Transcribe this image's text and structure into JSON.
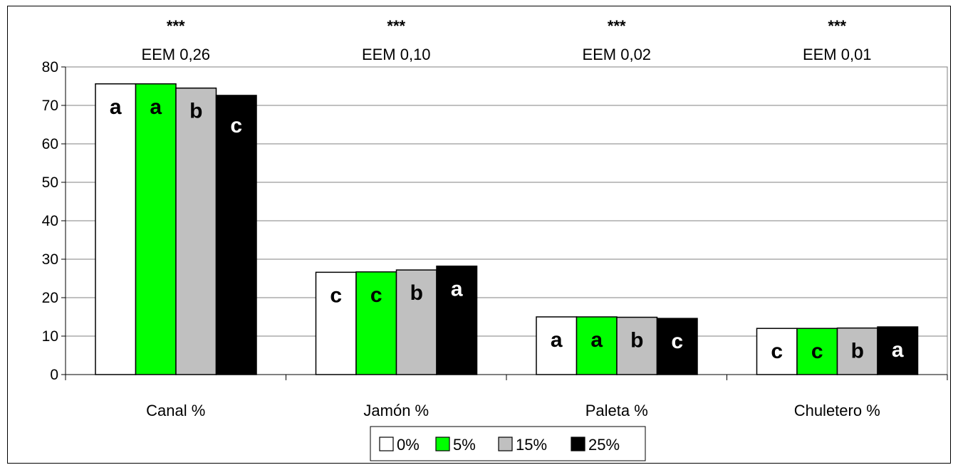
{
  "chart_data": {
    "type": "bar",
    "categories": [
      "Canal %",
      "Jamón %",
      "Paleta %",
      "Chuletero %"
    ],
    "series": [
      {
        "name": "0%",
        "color": "#ffffff",
        "values": [
          75.6,
          26.6,
          15.0,
          12.0
        ],
        "letters": [
          "a",
          "c",
          "a",
          "c"
        ]
      },
      {
        "name": "5%",
        "color": "#00ff00",
        "values": [
          75.6,
          26.7,
          15.0,
          12.0
        ],
        "letters": [
          "a",
          "c",
          "a",
          "c"
        ]
      },
      {
        "name": "15%",
        "color": "#c0c0c0",
        "values": [
          74.5,
          27.2,
          14.9,
          12.1
        ],
        "letters": [
          "b",
          "b",
          "b",
          "b"
        ]
      },
      {
        "name": "25%",
        "color": "#000000",
        "values": [
          72.6,
          28.2,
          14.6,
          12.4
        ],
        "letters": [
          "c",
          "a",
          "c",
          "a"
        ]
      }
    ],
    "annotations": [
      {
        "significance": "***",
        "eem": "EEM 0,26"
      },
      {
        "significance": "***",
        "eem": "EEM 0,10"
      },
      {
        "significance": "***",
        "eem": "EEM 0,02"
      },
      {
        "significance": "***",
        "eem": "EEM 0,01"
      }
    ],
    "ylim": [
      0,
      80
    ],
    "yticks": [
      0,
      10,
      20,
      30,
      40,
      50,
      60,
      70,
      80
    ],
    "grid": true,
    "legend": "bottom-center"
  }
}
